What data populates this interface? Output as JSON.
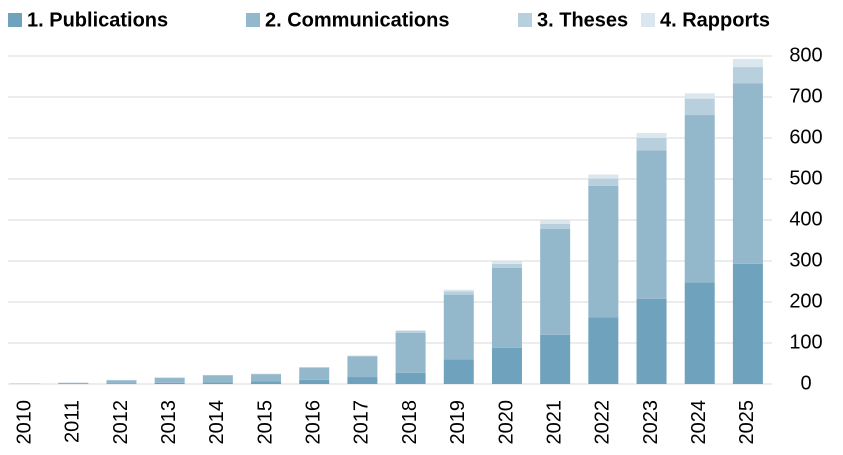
{
  "chart_data": {
    "type": "stacked_bar",
    "categories": [
      "2010",
      "2011",
      "2012",
      "2013",
      "2014",
      "2015",
      "2016",
      "2017",
      "2018",
      "2019",
      "2020",
      "2021",
      "2022",
      "2023",
      "2024",
      "2025"
    ],
    "series": [
      {
        "name": "1. Publications",
        "color": "#6fa3bd",
        "values": [
          0,
          1,
          2,
          3,
          4,
          6,
          10,
          17,
          27,
          60,
          88,
          120,
          163,
          208,
          248,
          293
        ]
      },
      {
        "name": "2. Communications",
        "color": "#94b8cb",
        "values": [
          1,
          2,
          7,
          12,
          17,
          18,
          30,
          50,
          98,
          158,
          195,
          258,
          320,
          362,
          408,
          440
        ]
      },
      {
        "name": "3. Theses",
        "color": "#b8d0dd",
        "values": [
          0,
          0,
          1,
          1,
          1,
          1,
          1,
          2,
          5,
          8,
          10,
          13,
          18,
          30,
          40,
          40
        ]
      },
      {
        "name": "4. Rapports",
        "color": "#dbe7ee",
        "values": [
          0,
          0,
          0,
          0,
          0,
          0,
          0,
          0,
          1,
          4,
          6,
          8,
          10,
          12,
          13,
          20
        ]
      }
    ],
    "ylim": [
      0,
      800
    ],
    "yticks": [
      0,
      100,
      200,
      300,
      400,
      500,
      600,
      700,
      800
    ],
    "grid": true,
    "legend": "top"
  }
}
